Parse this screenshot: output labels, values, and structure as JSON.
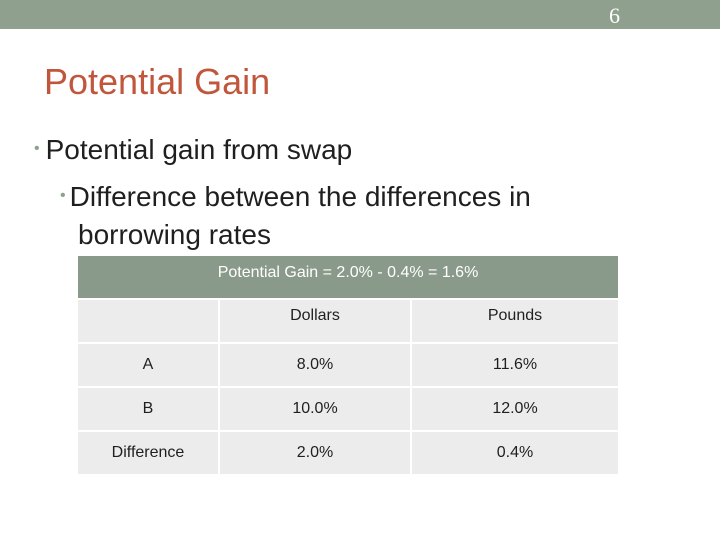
{
  "slide_number": "6",
  "title": "Potential Gain",
  "bullets": {
    "level1": "Potential gain from swap",
    "level2_line1": "Difference between the differences in",
    "level2_line2": "borrowing rates"
  },
  "table": {
    "header": "Potential Gain = 2.0% - 0.4% = 1.6%",
    "columns": [
      "",
      "Dollars",
      "Pounds"
    ],
    "rows": [
      [
        "A",
        "8.0%",
        "11.6%"
      ],
      [
        "B",
        "10.0%",
        "12.0%"
      ],
      [
        "Difference",
        "2.0%",
        "0.4%"
      ]
    ]
  },
  "colors": {
    "topbar": "#8fa08f",
    "title": "#c0573c",
    "table_header": "#8a9a8a",
    "table_cell": "#ececec"
  }
}
